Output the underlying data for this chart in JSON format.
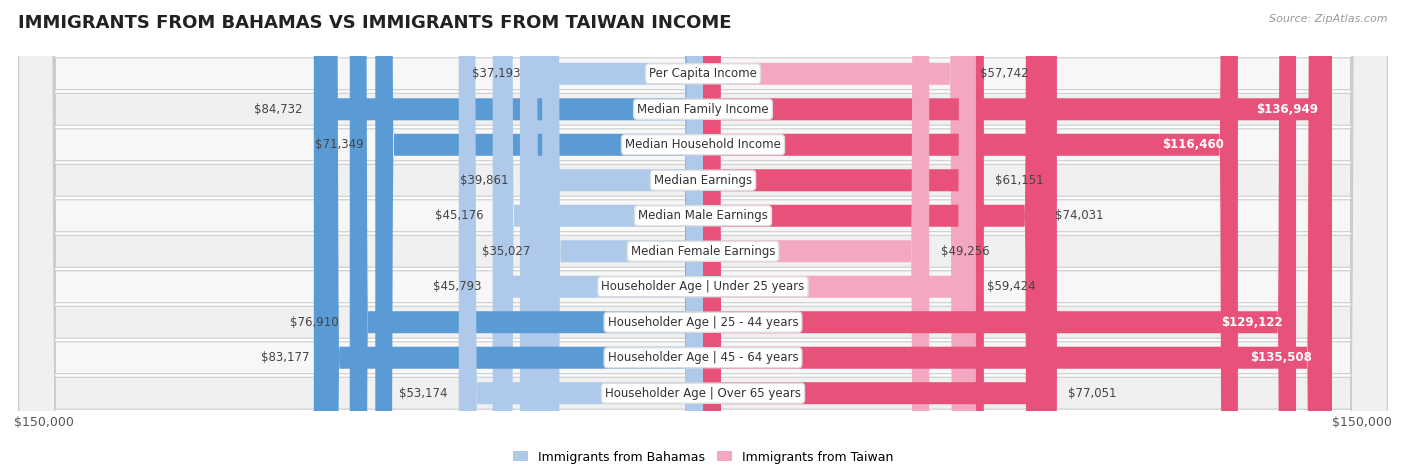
{
  "title": "IMMIGRANTS FROM BAHAMAS VS IMMIGRANTS FROM TAIWAN INCOME",
  "source": "Source: ZipAtlas.com",
  "categories": [
    "Per Capita Income",
    "Median Family Income",
    "Median Household Income",
    "Median Earnings",
    "Median Male Earnings",
    "Median Female Earnings",
    "Householder Age | Under 25 years",
    "Householder Age | 25 - 44 years",
    "Householder Age | 45 - 64 years",
    "Householder Age | Over 65 years"
  ],
  "bahamas_values": [
    37193,
    84732,
    71349,
    39861,
    45176,
    35027,
    45793,
    76910,
    83177,
    53174
  ],
  "taiwan_values": [
    57742,
    136949,
    116460,
    61151,
    74031,
    49256,
    59424,
    129122,
    135508,
    77051
  ],
  "bahamas_labels": [
    "$37,193",
    "$84,732",
    "$71,349",
    "$39,861",
    "$45,176",
    "$35,027",
    "$45,793",
    "$76,910",
    "$83,177",
    "$53,174"
  ],
  "taiwan_labels": [
    "$57,742",
    "$136,949",
    "$116,460",
    "$61,151",
    "$74,031",
    "$49,256",
    "$59,424",
    "$129,122",
    "$135,508",
    "$77,051"
  ],
  "bahamas_color_light": "#aec9ea",
  "bahamas_color_dark": "#5b9bd5",
  "taiwan_color_light": "#f4a7c0",
  "taiwan_color_dark": "#e8527a",
  "dark_threshold": 60000,
  "max_value": 150000,
  "row_bg_even": "#f2f2f2",
  "row_bg_odd": "#e8e8e8",
  "row_border": "#d0d0d0",
  "legend_bahamas": "Immigrants from Bahamas",
  "legend_taiwan": "Immigrants from Taiwan",
  "xlabel_left": "$150,000",
  "xlabel_right": "$150,000",
  "title_fontsize": 13,
  "label_fontsize": 8.5,
  "category_fontsize": 8.5,
  "source_fontsize": 8,
  "legend_fontsize": 9,
  "taiwan_inside_threshold": 100000
}
